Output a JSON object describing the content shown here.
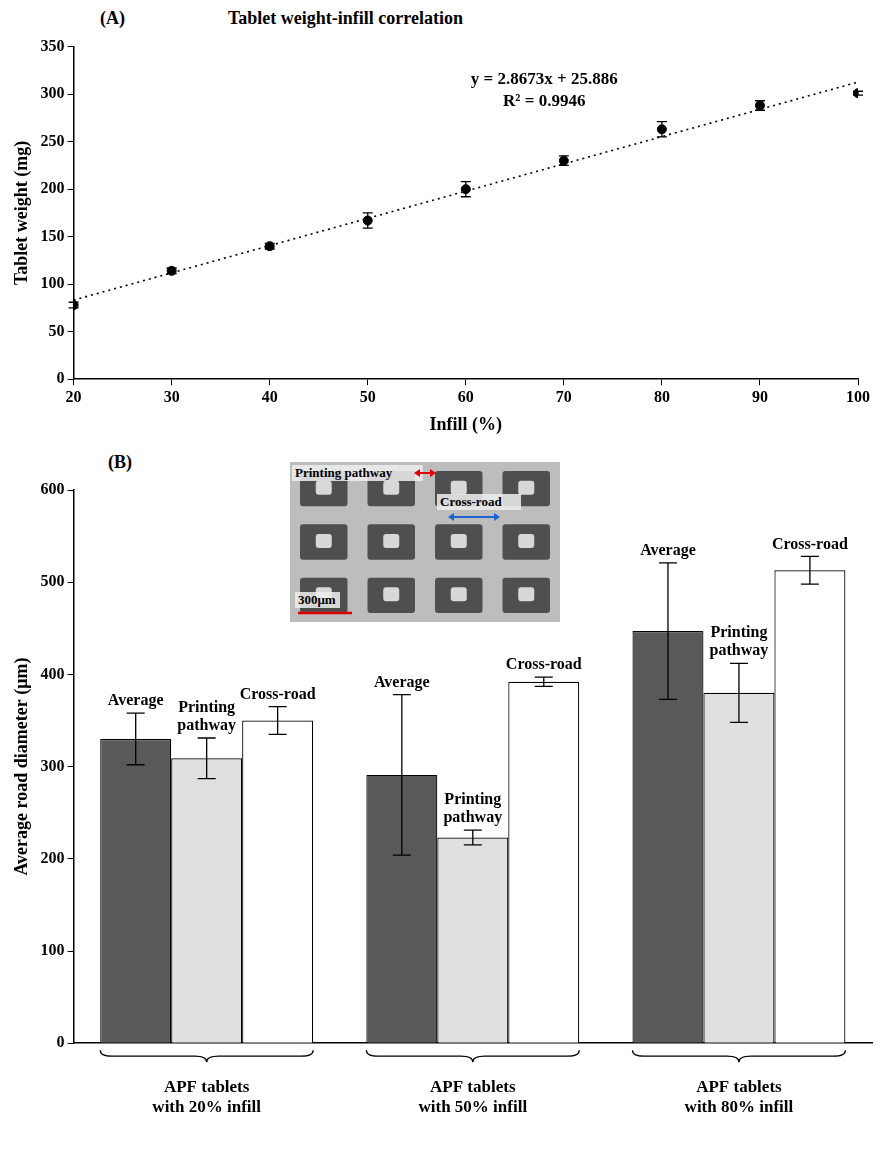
{
  "chart_data": [
    {
      "panel": "(A)",
      "type": "scatter",
      "title": "Tablet weight-infill correlation",
      "x_label": "Infill (%)",
      "y_label": "Tablet weight (mg)",
      "x": [
        20,
        30,
        40,
        50,
        60,
        70,
        80,
        90,
        100
      ],
      "values": [
        78,
        114,
        140,
        167,
        200,
        230,
        263,
        288,
        301
      ],
      "errors": [
        3,
        3,
        3,
        8,
        8,
        5,
        8,
        5,
        2
      ],
      "color": "#000000",
      "marker": "circle",
      "trendline": {
        "slope": 2.8673,
        "intercept": 25.886,
        "line_style": "dotted"
      },
      "annotations": [
        "y = 2.8673x + 25.886",
        "R² = 0.9946"
      ],
      "xlim": [
        20,
        100
      ],
      "xticks": [
        20,
        30,
        40,
        50,
        60,
        70,
        80,
        90,
        100
      ],
      "ylim": [
        0,
        350
      ],
      "yticks": [
        0,
        50,
        100,
        150,
        200,
        250,
        300,
        350
      ],
      "grid": false
    },
    {
      "panel": "(B)",
      "type": "bar",
      "y_label": "Average road diameter (μm)",
      "categories": [
        "APF tablets with 20% infill",
        "APF tablets with 50% infill",
        "APF tablets with 80% infill"
      ],
      "series": [
        {
          "name": "Average",
          "color": "#595959",
          "values": [
            330,
            291,
            447
          ],
          "errors": [
            28,
            87,
            74
          ]
        },
        {
          "name": "Printing pathway",
          "color": "#e0e0e0",
          "values": [
            309,
            223,
            380
          ],
          "errors": [
            22,
            8,
            32
          ]
        },
        {
          "name": "Cross-road",
          "color": "#ffffff",
          "values": [
            350,
            392,
            513
          ],
          "errors": [
            15,
            5,
            15
          ]
        }
      ],
      "ylim": [
        0,
        600
      ],
      "yticks": [
        0,
        100,
        200,
        300,
        400,
        500,
        600
      ],
      "grid": false,
      "inset_labels": [
        "Printing pathway",
        "Cross-road",
        "300μm"
      ]
    }
  ]
}
